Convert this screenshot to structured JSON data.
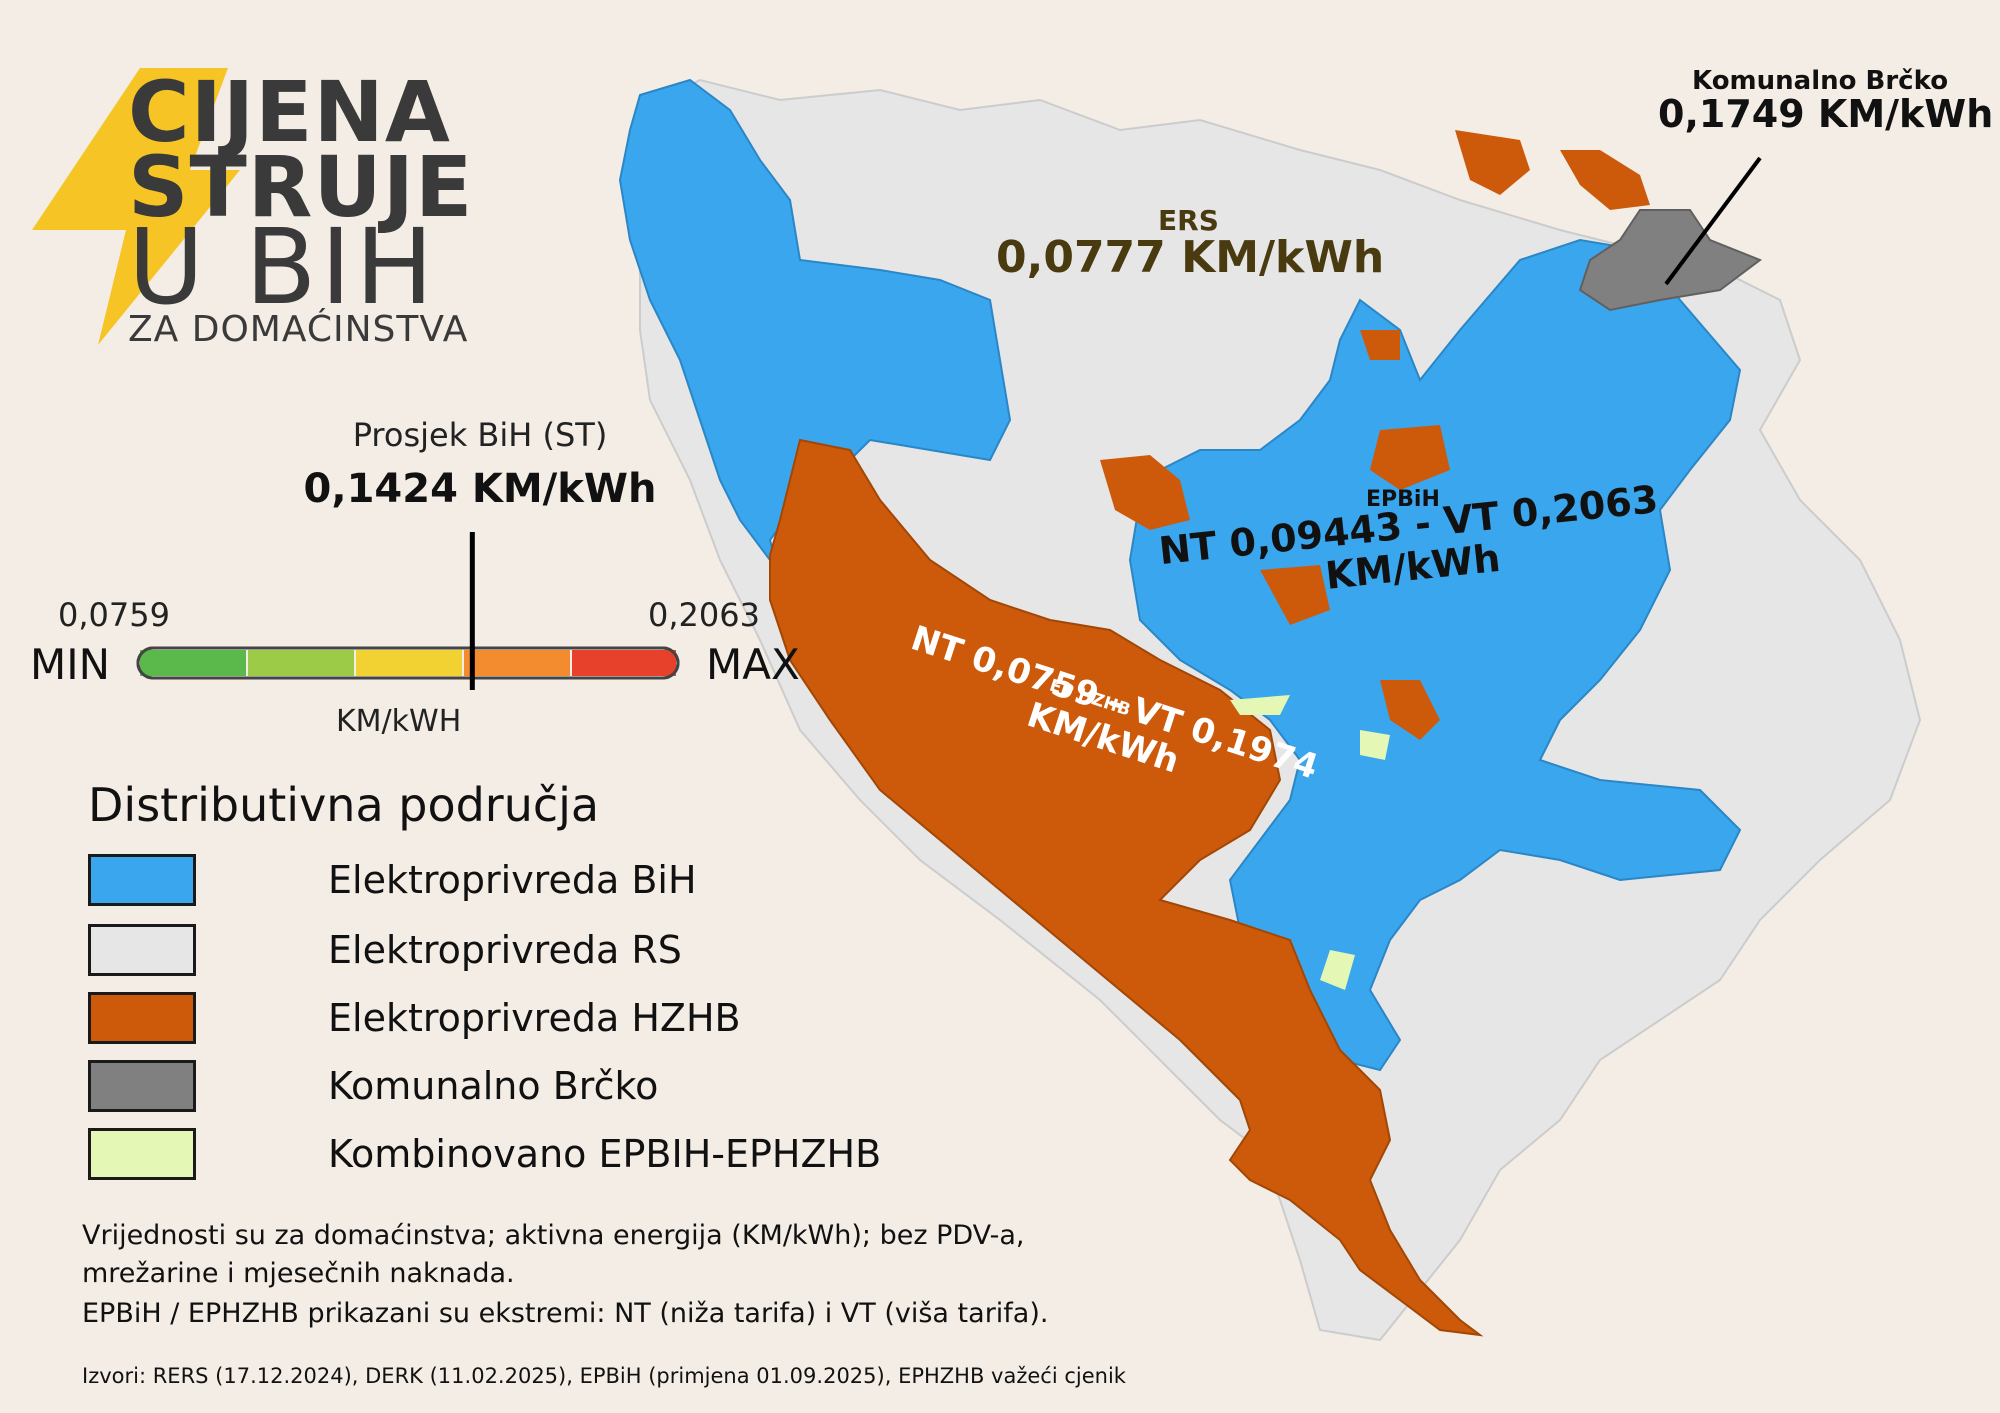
{
  "title": {
    "line1": "CIJENA",
    "line2": "STRUJE",
    "line3": "U BIH",
    "line4": "ZA DOMAĆINSTVA"
  },
  "average": {
    "label": "Prosjek BiH (ST)",
    "value": "0,1424 KM/kWh",
    "position_on_scale": 0.62
  },
  "scale": {
    "min_value": "0,0759",
    "max_value": "0,2063",
    "min_label": "MIN",
    "max_label": "MAX",
    "unit": "KM/kWH",
    "colors": [
      "#5bb84a",
      "#9ccb47",
      "#f2d233",
      "#f28c2e",
      "#e8412b"
    ]
  },
  "legend": {
    "title": "Distributivna područja",
    "items": [
      {
        "label": "Elektroprivreda BiH",
        "color": "#3aa6ee"
      },
      {
        "label": "Elektroprivreda RS",
        "color": "#e6e6e6"
      },
      {
        "label": "Elektroprivreda HZHB",
        "color": "#cc5a0a"
      },
      {
        "label": "Komunalno Brčko",
        "color": "#808080"
      },
      {
        "label": "Kombinovano EPBIH-EPHZHB",
        "color": "#e4f7b4"
      }
    ]
  },
  "notes": {
    "line1": "Vrijednosti su za domaćinstva; aktivna energija (KM/kWh); bez PDV-a,",
    "line2": "mrežarine i mjesečnih naknada.",
    "line3": "EPBiH / EPHZHB prikazani su ekstremi: NT (niža tarifa) i VT (viša tarifa).",
    "sources": "Izvori: RERS (17.12.2024), DERK (11.02.2025), EPBiH (primjena 01.09.2025), EPHZHB važeći cjenik"
  },
  "map_labels": {
    "ers_name": "ERS",
    "ers_price": "0,0777 KM/kWh",
    "brcko_name": "Komunalno Brčko",
    "brcko_price": "0,1749 KM/kWh",
    "epbih_name": "EPBiH",
    "epbih_price_line1": "NT 0,09443  - VT 0,2063",
    "epbih_price_line2": "KM/kWh",
    "ephzhb_name": "EP HZHB",
    "ephzhb_price_line1": "NT 0,0759 - VT 0,1974",
    "ephzhb_price_line2": "KM/kWh"
  },
  "colors": {
    "accent_logo": "#f7c21a",
    "background": "#f3ede6"
  }
}
